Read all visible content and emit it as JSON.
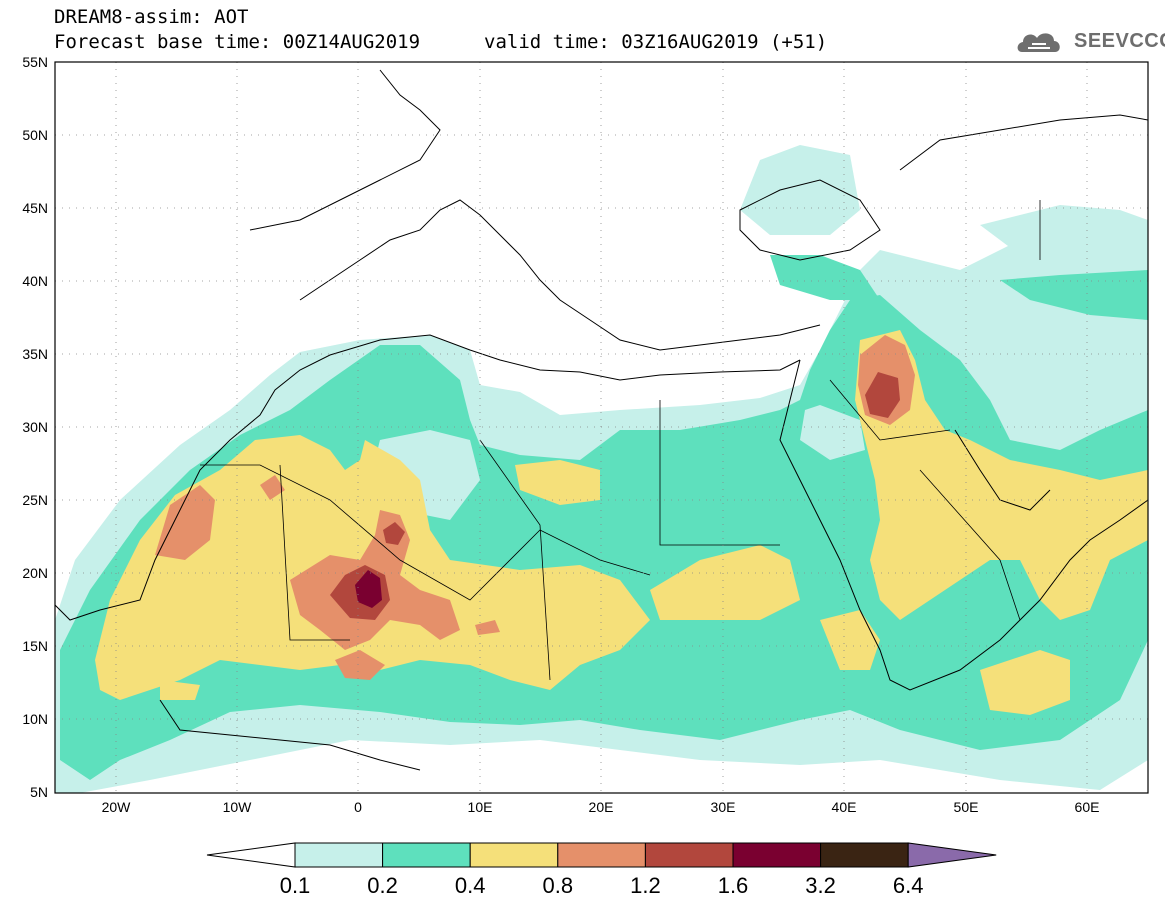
{
  "header": {
    "title": "DREAM8-assim: AOT",
    "base_time": "Forecast base time: 00Z14AUG2019",
    "valid_time": "valid time: 03Z16AUG2019 (+51)"
  },
  "logo": {
    "text": "SEEVCCC",
    "icon": "cloud-icon"
  },
  "map": {
    "lat_labels": [
      "55N",
      "50N",
      "45N",
      "40N",
      "35N",
      "30N",
      "25N",
      "20N",
      "15N",
      "10N",
      "5N"
    ],
    "lon_labels": [
      "20W",
      "10W",
      "0",
      "10E",
      "20E",
      "30E",
      "40E",
      "50E",
      "60E"
    ],
    "lat_range": [
      5,
      55
    ],
    "lon_range": [
      -25,
      65
    ],
    "gridlines": "dotted"
  },
  "colorbar": {
    "labels": [
      "0.1",
      "0.2",
      "0.4",
      "0.8",
      "1.2",
      "1.6",
      "3.2",
      "6.4"
    ],
    "colors": [
      "#ffffff",
      "#c6f0ea",
      "#5ee0bd",
      "#f5e07a",
      "#e5906a",
      "#b2473d",
      "#7a0030",
      "#3a2413",
      "#8a6aaa"
    ]
  },
  "palette": {
    "c0": "#ffffff",
    "c1": "#c6f0ea",
    "c2": "#5ee0bd",
    "c3": "#f5e07a",
    "c4": "#e5906a",
    "c5": "#b2473d",
    "c6": "#7a0030"
  }
}
